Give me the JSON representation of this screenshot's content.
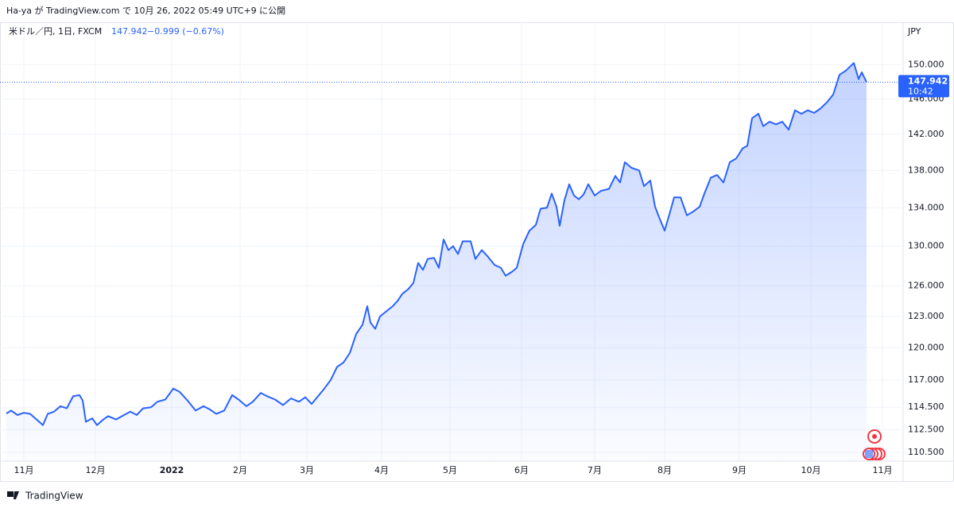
{
  "header": {
    "published": "Ha-ya が TradingView.com で 10月 26, 2022 05:49 UTC+9 に公開"
  },
  "legend": {
    "symbol": "米ドル／円, 1日, FXCM",
    "last": "147.942",
    "change": "−0.999 (−0.67%)"
  },
  "footer": {
    "brand": "TradingView"
  },
  "chart_data": {
    "type": "area",
    "color": "#2962ff",
    "log_scale": true,
    "grid": true,
    "y_axis_label": "JPY",
    "price_label": "147.942",
    "time_label": "10:42",
    "x": [
      0,
      3,
      7,
      11,
      15,
      19,
      23,
      26,
      30,
      34,
      38,
      42,
      46,
      48,
      50,
      54,
      57,
      61,
      64,
      69,
      74,
      78,
      82,
      86,
      91,
      95,
      100,
      105,
      109,
      114,
      119,
      124,
      128,
      132,
      137,
      142,
      146,
      151,
      155,
      160,
      164,
      169,
      174,
      179,
      184,
      188,
      192,
      196,
      200,
      204,
      208,
      212,
      216,
      220,
      224,
      227,
      229,
      232,
      235,
      239,
      243,
      246,
      249,
      253,
      256,
      259,
      262,
      265,
      269,
      272,
      275,
      278,
      281,
      284,
      287,
      292,
      295,
      299,
      303,
      307,
      311,
      314,
      318,
      321,
      325,
      329,
      333,
      336,
      340,
      343,
      346,
      348,
      351,
      354,
      357,
      360,
      363,
      366,
      370,
      374,
      379,
      383,
      386,
      389,
      393,
      398,
      401,
      405,
      408,
      411,
      414,
      417,
      420,
      424,
      428,
      432,
      436,
      439,
      443,
      447,
      451,
      455,
      459,
      463,
      466,
      469,
      473,
      476,
      480,
      484,
      488,
      492,
      496,
      500,
      504,
      508,
      512,
      516,
      520,
      524,
      528,
      533,
      536,
      538,
      541
    ],
    "series": [
      {
        "name": "米ドル／円",
        "color": "#2962ff",
        "values": [
          113.94,
          114.2,
          113.8,
          114.0,
          113.9,
          113.4,
          112.9,
          113.9,
          114.1,
          114.6,
          114.4,
          115.5,
          115.6,
          115.1,
          113.2,
          113.5,
          112.9,
          113.4,
          113.7,
          113.4,
          113.8,
          114.1,
          113.8,
          114.4,
          114.5,
          115.0,
          115.2,
          116.2,
          115.9,
          115.1,
          114.2,
          114.6,
          114.3,
          113.9,
          114.2,
          115.6,
          115.2,
          114.6,
          115.0,
          115.8,
          115.5,
          115.2,
          114.7,
          115.3,
          115.0,
          115.4,
          114.8,
          115.5,
          116.2,
          117.0,
          118.2,
          118.6,
          119.5,
          121.3,
          122.2,
          124.0,
          122.4,
          121.8,
          123.0,
          123.5,
          124.0,
          124.5,
          125.2,
          125.7,
          126.3,
          128.3,
          127.6,
          128.7,
          128.8,
          127.8,
          130.7,
          129.6,
          130.0,
          129.2,
          130.5,
          130.5,
          128.7,
          129.6,
          128.9,
          128.1,
          127.8,
          127.0,
          127.4,
          127.8,
          130.2,
          131.6,
          132.2,
          133.9,
          134.0,
          135.5,
          134.1,
          132.1,
          134.8,
          136.5,
          135.3,
          134.9,
          135.4,
          136.5,
          135.3,
          135.8,
          136.0,
          137.4,
          136.7,
          138.9,
          138.3,
          138.0,
          136.3,
          136.9,
          134.1,
          132.8,
          131.6,
          133.3,
          135.1,
          135.1,
          133.2,
          133.6,
          134.1,
          135.5,
          137.2,
          137.5,
          136.7,
          138.9,
          139.3,
          140.4,
          140.7,
          143.8,
          144.3,
          142.9,
          143.4,
          143.1,
          143.4,
          142.5,
          144.7,
          144.3,
          144.7,
          144.4,
          144.9,
          145.6,
          146.5,
          148.8,
          149.3,
          150.2,
          148.3,
          149.1,
          147.942
        ]
      }
    ],
    "xlim": [
      -4,
      564
    ],
    "xticks": [
      {
        "value": 11,
        "label": "11月"
      },
      {
        "value": 56,
        "label": "12月"
      },
      {
        "value": 104,
        "label": "2022"
      },
      {
        "value": 147,
        "label": "2月"
      },
      {
        "value": 189,
        "label": "3月"
      },
      {
        "value": 236,
        "label": "4月"
      },
      {
        "value": 279,
        "label": "5月"
      },
      {
        "value": 324,
        "label": "6月"
      },
      {
        "value": 370,
        "label": "7月"
      },
      {
        "value": 414,
        "label": "8月"
      },
      {
        "value": 461,
        "label": "9月"
      },
      {
        "value": 506,
        "label": "10月"
      },
      {
        "value": 551,
        "label": "11月"
      }
    ],
    "ylim": [
      109.74,
      154.9
    ],
    "yticks": [
      {
        "value": 110.5,
        "label": "110.500"
      },
      {
        "value": 112.5,
        "label": "112.500"
      },
      {
        "value": 114.5,
        "label": "114.500"
      },
      {
        "value": 117,
        "label": "117.000"
      },
      {
        "value": 120,
        "label": "120.000"
      },
      {
        "value": 123,
        "label": "123.000"
      },
      {
        "value": 126,
        "label": "126.000"
      },
      {
        "value": 130,
        "label": "130.000"
      },
      {
        "value": 134,
        "label": "134.000"
      },
      {
        "value": 138,
        "label": "138.000"
      },
      {
        "value": 142,
        "label": "142.000"
      },
      {
        "value": 146,
        "label": "146.000"
      },
      {
        "value": 150,
        "label": "150.000"
      }
    ]
  }
}
